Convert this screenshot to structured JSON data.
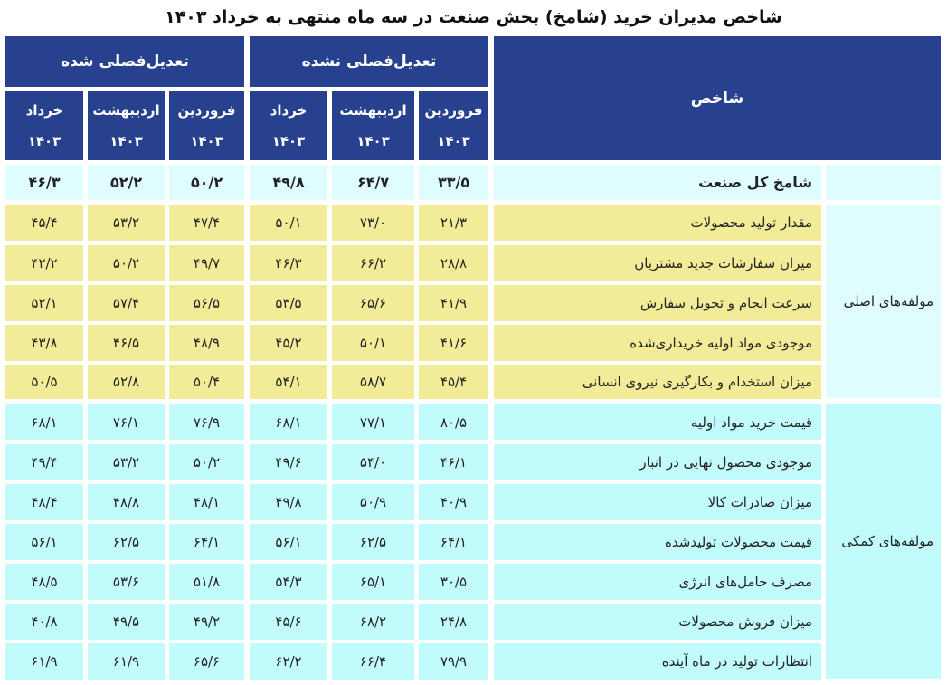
{
  "title": "شاخص مدیران خرید (شامخ) بخش صنعت در سه ماه منتهی به خرداد ۱۴۰۳",
  "header": {
    "indicator_label": "شاخص",
    "groups": {
      "not_adjusted": "تعدیل‌فصلی نشده",
      "adjusted": "تعدیل‌فصلی شده"
    },
    "months": [
      {
        "name": "فروردین",
        "year": "۱۴۰۳"
      },
      {
        "name": "اردیبهشت",
        "year": "۱۴۰۳"
      },
      {
        "name": "خرداد",
        "year": "۱۴۰۳"
      }
    ]
  },
  "row_groups": {
    "main": "مولفه‌های اصلی",
    "aux": "مولفه‌های کمکی"
  },
  "colors": {
    "header_bg": "#27418f",
    "total_row_bg": "#dffdfe",
    "main_components_bg": "#f2eb98",
    "aux_components_bg": "#c2fbfb"
  },
  "rows": [
    {
      "label": "شامخ کل صنعت",
      "group": "total",
      "na": [
        "۳۳/۵",
        "۶۴/۷",
        "۴۹/۸"
      ],
      "sa": [
        "۵۰/۲",
        "۵۲/۲",
        "۴۶/۳"
      ]
    },
    {
      "label": "مقدار تولید محصولات",
      "group": "main",
      "na": [
        "۲۱/۳",
        "۷۳/۰",
        "۵۰/۱"
      ],
      "sa": [
        "۴۷/۴",
        "۵۳/۲",
        "۴۵/۴"
      ]
    },
    {
      "label": "میزان سفارشات جدید مشتریان",
      "group": "main",
      "na": [
        "۲۸/۸",
        "۶۶/۲",
        "۴۶/۳"
      ],
      "sa": [
        "۴۹/۷",
        "۵۰/۲",
        "۴۲/۲"
      ]
    },
    {
      "label": "سرعت انجام و تحویل سفارش",
      "group": "main",
      "na": [
        "۴۱/۹",
        "۶۵/۶",
        "۵۳/۵"
      ],
      "sa": [
        "۵۶/۵",
        "۵۷/۴",
        "۵۲/۱"
      ]
    },
    {
      "label": "موجودی مواد اولیه خریداری‌شده",
      "group": "main",
      "na": [
        "۴۱/۶",
        "۵۰/۱",
        "۴۵/۲"
      ],
      "sa": [
        "۴۸/۹",
        "۴۶/۵",
        "۴۳/۸"
      ]
    },
    {
      "label": "میزان استخدام و بکارگیری نیروی انسانی",
      "group": "main",
      "na": [
        "۴۵/۴",
        "۵۸/۷",
        "۵۴/۱"
      ],
      "sa": [
        "۵۰/۴",
        "۵۲/۸",
        "۵۰/۵"
      ]
    },
    {
      "label": "قیمت خرید مواد اولیه",
      "group": "aux",
      "na": [
        "۸۰/۵",
        "۷۷/۱",
        "۶۸/۱"
      ],
      "sa": [
        "۷۶/۹",
        "۷۶/۱",
        "۶۸/۱"
      ]
    },
    {
      "label": "موجودی محصول نهایی در انبار",
      "group": "aux",
      "na": [
        "۴۶/۱",
        "۵۴/۰",
        "۴۹/۶"
      ],
      "sa": [
        "۵۰/۲",
        "۵۳/۲",
        "۴۹/۴"
      ]
    },
    {
      "label": "میزان صادرات کالا",
      "group": "aux",
      "na": [
        "۴۰/۹",
        "۵۰/۹",
        "۴۹/۸"
      ],
      "sa": [
        "۴۸/۱",
        "۴۸/۸",
        "۴۸/۴"
      ]
    },
    {
      "label": "قیمت محصولات تولیدشده",
      "group": "aux",
      "na": [
        "۶۴/۱",
        "۶۲/۵",
        "۵۶/۱"
      ],
      "sa": [
        "۶۴/۱",
        "۶۲/۵",
        "۵۶/۱"
      ]
    },
    {
      "label": "مصرف حامل‌های انرژی",
      "group": "aux",
      "na": [
        "۳۰/۵",
        "۶۵/۱",
        "۵۴/۳"
      ],
      "sa": [
        "۵۱/۸",
        "۵۳/۶",
        "۴۸/۵"
      ]
    },
    {
      "label": "میزان فروش محصولات",
      "group": "aux",
      "na": [
        "۲۴/۸",
        "۶۸/۲",
        "۴۵/۶"
      ],
      "sa": [
        "۴۹/۲",
        "۴۹/۵",
        "۴۰/۸"
      ]
    },
    {
      "label": "انتظارات تولید در ماه آینده",
      "group": "aux",
      "na": [
        "۷۹/۹",
        "۶۶/۴",
        "۶۲/۲"
      ],
      "sa": [
        "۶۵/۶",
        "۶۱/۹",
        "۶۱/۹"
      ]
    }
  ]
}
